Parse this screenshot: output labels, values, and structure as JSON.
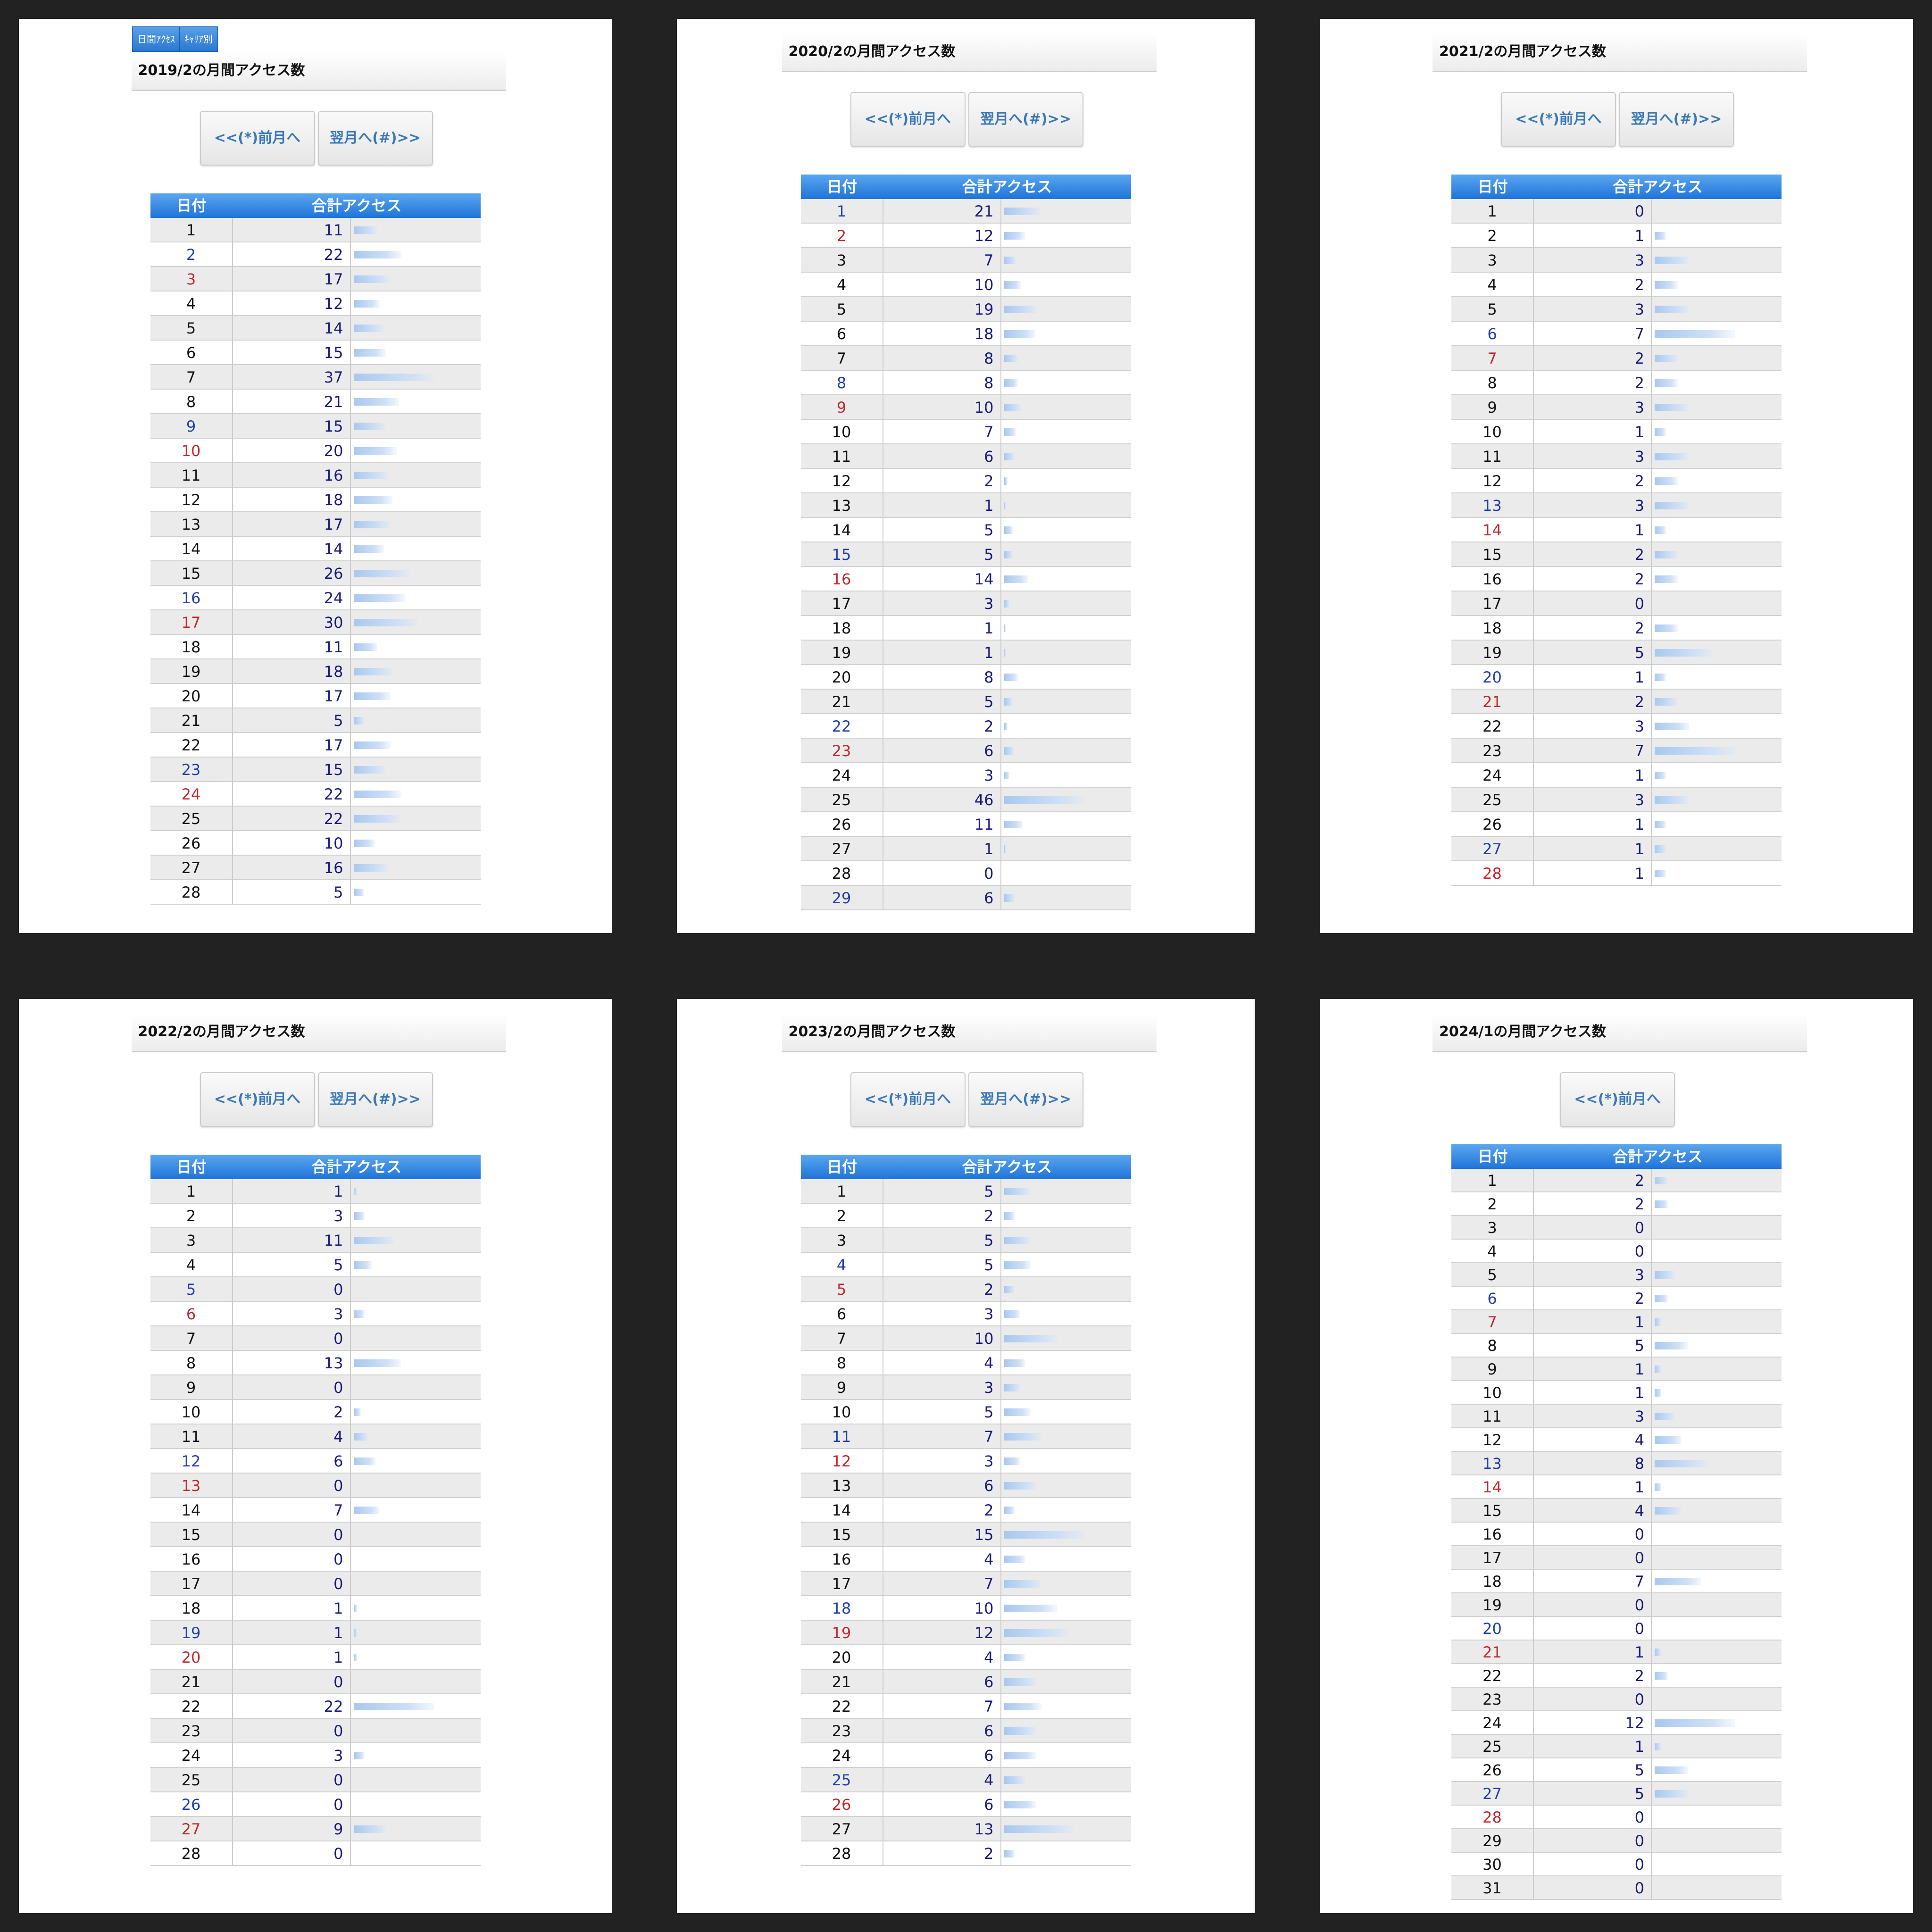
{
  "panels": [
    {
      "tabs": [
        "日間ｱｸｾｽ",
        "ｷｬﾘｱ別"
      ],
      "title": "2019/2の月間アクセス数",
      "buttons": [
        "<<(*)前月へ",
        "翌月へ(#)>>"
      ],
      "header": [
        "日付",
        "合計アクセス"
      ],
      "rows": [
        {
          "day": 1,
          "count": 11
        },
        {
          "day": 2,
          "count": 22,
          "day_color": "#1f3fa8"
        },
        {
          "day": 3,
          "count": 17,
          "day_color": "#c0282d"
        },
        {
          "day": 4,
          "count": 12
        },
        {
          "day": 5,
          "count": 14
        },
        {
          "day": 6,
          "count": 15
        },
        {
          "day": 7,
          "count": 37
        },
        {
          "day": 8,
          "count": 21
        },
        {
          "day": 9,
          "count": 15,
          "day_color": "#1f3fa8"
        },
        {
          "day": 10,
          "count": 20,
          "day_color": "#c0282d"
        },
        {
          "day": 11,
          "count": 16
        },
        {
          "day": 12,
          "count": 18
        },
        {
          "day": 13,
          "count": 17
        },
        {
          "day": 14,
          "count": 14
        },
        {
          "day": 15,
          "count": 26
        },
        {
          "day": 16,
          "count": 24,
          "day_color": "#1f3fa8"
        },
        {
          "day": 17,
          "count": 30,
          "day_color": "#c0282d"
        },
        {
          "day": 18,
          "count": 11
        },
        {
          "day": 19,
          "count": 18
        },
        {
          "day": 20,
          "count": 17
        },
        {
          "day": 21,
          "count": 5
        },
        {
          "day": 22,
          "count": 17
        },
        {
          "day": 23,
          "count": 15,
          "day_color": "#1f3fa8"
        },
        {
          "day": 24,
          "count": 22,
          "day_color": "#c0282d"
        },
        {
          "day": 25,
          "count": 22
        },
        {
          "day": 26,
          "count": 10
        },
        {
          "day": 27,
          "count": 16
        },
        {
          "day": 28,
          "count": 5
        }
      ]
    },
    {
      "title": "2020/2の月間アクセス数",
      "buttons": [
        "<<(*)前月へ",
        "翌月へ(#)>>"
      ],
      "header": [
        "日付",
        "合計アクセス"
      ],
      "rows": [
        {
          "day": 1,
          "count": 21,
          "day_color": "#1f3fa8"
        },
        {
          "day": 2,
          "count": 12,
          "day_color": "#c0282d"
        },
        {
          "day": 3,
          "count": 7
        },
        {
          "day": 4,
          "count": 10
        },
        {
          "day": 5,
          "count": 19
        },
        {
          "day": 6,
          "count": 18
        },
        {
          "day": 7,
          "count": 8
        },
        {
          "day": 8,
          "count": 8,
          "day_color": "#1f3fa8"
        },
        {
          "day": 9,
          "count": 10,
          "day_color": "#c0282d"
        },
        {
          "day": 10,
          "count": 7
        },
        {
          "day": 11,
          "count": 6
        },
        {
          "day": 12,
          "count": 2
        },
        {
          "day": 13,
          "count": 1
        },
        {
          "day": 14,
          "count": 5
        },
        {
          "day": 15,
          "count": 5,
          "day_color": "#1f3fa8"
        },
        {
          "day": 16,
          "count": 14,
          "day_color": "#c0282d"
        },
        {
          "day": 17,
          "count": 3
        },
        {
          "day": 18,
          "count": 1
        },
        {
          "day": 19,
          "count": 1
        },
        {
          "day": 20,
          "count": 8
        },
        {
          "day": 21,
          "count": 5
        },
        {
          "day": 22,
          "count": 2,
          "day_color": "#1f3fa8"
        },
        {
          "day": 23,
          "count": 6,
          "day_color": "#c0282d"
        },
        {
          "day": 24,
          "count": 3
        },
        {
          "day": 25,
          "count": 46
        },
        {
          "day": 26,
          "count": 11
        },
        {
          "day": 27,
          "count": 1
        },
        {
          "day": 28,
          "count": 0
        },
        {
          "day": 29,
          "count": 6,
          "day_color": "#1f3fa8"
        }
      ]
    },
    {
      "title": "2021/2の月間アクセス数",
      "buttons": [
        "<<(*)前月へ",
        "翌月へ(#)>>"
      ],
      "header": [
        "日付",
        "合計アクセス"
      ],
      "rows": [
        {
          "day": 1,
          "count": 0
        },
        {
          "day": 2,
          "count": 1
        },
        {
          "day": 3,
          "count": 3
        },
        {
          "day": 4,
          "count": 2
        },
        {
          "day": 5,
          "count": 3
        },
        {
          "day": 6,
          "count": 7,
          "day_color": "#1f3fa8"
        },
        {
          "day": 7,
          "count": 2,
          "day_color": "#c0282d"
        },
        {
          "day": 8,
          "count": 2
        },
        {
          "day": 9,
          "count": 3
        },
        {
          "day": 10,
          "count": 1
        },
        {
          "day": 11,
          "count": 3
        },
        {
          "day": 12,
          "count": 2
        },
        {
          "day": 13,
          "count": 3,
          "day_color": "#1f3fa8"
        },
        {
          "day": 14,
          "count": 1,
          "day_color": "#c0282d"
        },
        {
          "day": 15,
          "count": 2
        },
        {
          "day": 16,
          "count": 2
        },
        {
          "day": 17,
          "count": 0
        },
        {
          "day": 18,
          "count": 2
        },
        {
          "day": 19,
          "count": 5
        },
        {
          "day": 20,
          "count": 1,
          "day_color": "#1f3fa8"
        },
        {
          "day": 21,
          "count": 2,
          "day_color": "#c0282d"
        },
        {
          "day": 22,
          "count": 3
        },
        {
          "day": 23,
          "count": 7
        },
        {
          "day": 24,
          "count": 1
        },
        {
          "day": 25,
          "count": 3
        },
        {
          "day": 26,
          "count": 1
        },
        {
          "day": 27,
          "count": 1,
          "day_color": "#1f3fa8"
        },
        {
          "day": 28,
          "count": 1,
          "day_color": "#c0282d"
        }
      ]
    },
    {
      "title": "2022/2の月間アクセス数",
      "buttons": [
        "<<(*)前月へ",
        "翌月へ(#)>>"
      ],
      "header": [
        "日付",
        "合計アクセス"
      ],
      "rows": [
        {
          "day": 1,
          "count": 1
        },
        {
          "day": 2,
          "count": 3
        },
        {
          "day": 3,
          "count": 11
        },
        {
          "day": 4,
          "count": 5
        },
        {
          "day": 5,
          "count": 0,
          "day_color": "#1f3fa8"
        },
        {
          "day": 6,
          "count": 3,
          "day_color": "#c0282d"
        },
        {
          "day": 7,
          "count": 0
        },
        {
          "day": 8,
          "count": 13
        },
        {
          "day": 9,
          "count": 0
        },
        {
          "day": 10,
          "count": 2
        },
        {
          "day": 11,
          "count": 4
        },
        {
          "day": 12,
          "count": 6,
          "day_color": "#1f3fa8"
        },
        {
          "day": 13,
          "count": 0,
          "day_color": "#c0282d"
        },
        {
          "day": 14,
          "count": 7
        },
        {
          "day": 15,
          "count": 0
        },
        {
          "day": 16,
          "count": 0
        },
        {
          "day": 17,
          "count": 0
        },
        {
          "day": 18,
          "count": 1
        },
        {
          "day": 19,
          "count": 1,
          "day_color": "#1f3fa8"
        },
        {
          "day": 20,
          "count": 1,
          "day_color": "#c0282d"
        },
        {
          "day": 21,
          "count": 0
        },
        {
          "day": 22,
          "count": 22
        },
        {
          "day": 23,
          "count": 0
        },
        {
          "day": 24,
          "count": 3
        },
        {
          "day": 25,
          "count": 0
        },
        {
          "day": 26,
          "count": 0,
          "day_color": "#1f3fa8"
        },
        {
          "day": 27,
          "count": 9,
          "day_color": "#c0282d"
        },
        {
          "day": 28,
          "count": 0
        }
      ]
    },
    {
      "title": "2023/2の月間アクセス数",
      "buttons": [
        "<<(*)前月へ",
        "翌月へ(#)>>"
      ],
      "header": [
        "日付",
        "合計アクセス"
      ],
      "rows": [
        {
          "day": 1,
          "count": 5
        },
        {
          "day": 2,
          "count": 2
        },
        {
          "day": 3,
          "count": 5
        },
        {
          "day": 4,
          "count": 5,
          "day_color": "#1f3fa8"
        },
        {
          "day": 5,
          "count": 2,
          "day_color": "#c0282d"
        },
        {
          "day": 6,
          "count": 3
        },
        {
          "day": 7,
          "count": 10
        },
        {
          "day": 8,
          "count": 4
        },
        {
          "day": 9,
          "count": 3
        },
        {
          "day": 10,
          "count": 5
        },
        {
          "day": 11,
          "count": 7,
          "day_color": "#1f3fa8"
        },
        {
          "day": 12,
          "count": 3,
          "day_color": "#c0282d"
        },
        {
          "day": 13,
          "count": 6
        },
        {
          "day": 14,
          "count": 2
        },
        {
          "day": 15,
          "count": 15
        },
        {
          "day": 16,
          "count": 4
        },
        {
          "day": 17,
          "count": 7
        },
        {
          "day": 18,
          "count": 10,
          "day_color": "#1f3fa8"
        },
        {
          "day": 19,
          "count": 12,
          "day_color": "#c0282d"
        },
        {
          "day": 20,
          "count": 4
        },
        {
          "day": 21,
          "count": 6
        },
        {
          "day": 22,
          "count": 7
        },
        {
          "day": 23,
          "count": 6
        },
        {
          "day": 24,
          "count": 6
        },
        {
          "day": 25,
          "count": 4,
          "day_color": "#1f3fa8"
        },
        {
          "day": 26,
          "count": 6,
          "day_color": "#c0282d"
        },
        {
          "day": 27,
          "count": 13
        },
        {
          "day": 28,
          "count": 2
        }
      ]
    },
    {
      "title": "2024/1の月間アクセス数",
      "buttons": [
        "<<(*)前月へ"
      ],
      "header": [
        "日付",
        "合計アクセス"
      ],
      "rows": [
        {
          "day": 1,
          "count": 2
        },
        {
          "day": 2,
          "count": 2
        },
        {
          "day": 3,
          "count": 0
        },
        {
          "day": 4,
          "count": 0
        },
        {
          "day": 5,
          "count": 3
        },
        {
          "day": 6,
          "count": 2,
          "day_color": "#1f3fa8"
        },
        {
          "day": 7,
          "count": 1,
          "day_color": "#c0282d"
        },
        {
          "day": 8,
          "count": 5
        },
        {
          "day": 9,
          "count": 1
        },
        {
          "day": 10,
          "count": 1
        },
        {
          "day": 11,
          "count": 3
        },
        {
          "day": 12,
          "count": 4
        },
        {
          "day": 13,
          "count": 8,
          "day_color": "#1f3fa8"
        },
        {
          "day": 14,
          "count": 1,
          "day_color": "#c0282d"
        },
        {
          "day": 15,
          "count": 4
        },
        {
          "day": 16,
          "count": 0
        },
        {
          "day": 17,
          "count": 0
        },
        {
          "day": 18,
          "count": 7
        },
        {
          "day": 19,
          "count": 0
        },
        {
          "day": 20,
          "count": 0,
          "day_color": "#1f3fa8"
        },
        {
          "day": 21,
          "count": 1,
          "day_color": "#c0282d"
        },
        {
          "day": 22,
          "count": 2
        },
        {
          "day": 23,
          "count": 0
        },
        {
          "day": 24,
          "count": 12
        },
        {
          "day": 25,
          "count": 1
        },
        {
          "day": 26,
          "count": 5
        },
        {
          "day": 27,
          "count": 5,
          "day_color": "#1f3fa8"
        },
        {
          "day": 28,
          "count": 0,
          "day_color": "#c0282d"
        },
        {
          "day": 29,
          "count": 0
        },
        {
          "day": 30,
          "count": 0
        },
        {
          "day": 31,
          "count": 0
        }
      ]
    }
  ]
}
